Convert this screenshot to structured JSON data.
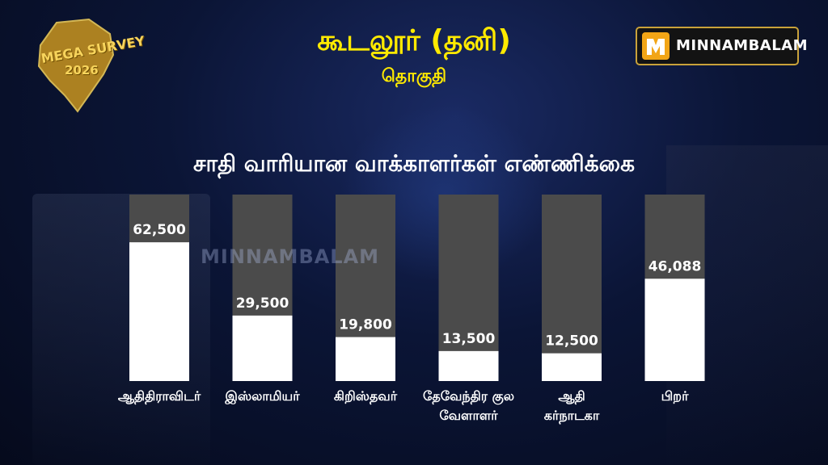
{
  "badge": {
    "line1": "MEGA SURVEY",
    "line2": "2026"
  },
  "header": {
    "title": "கூடலூர் (தனி)",
    "subtitle": "தொகுதி"
  },
  "logo": {
    "text": "MINNAMBALAM"
  },
  "watermark": "MINNAMBALAM",
  "colors": {
    "title": "#ffea00",
    "bar_fill": "#ffffff",
    "bar_track": "#4b4b4b",
    "label": "#ffffff"
  },
  "chart_data": {
    "type": "bar",
    "title": "சாதி வாரியான வாக்காளர்கள்  எண்ணிக்கை",
    "categories": [
      "ஆதிதிராவிடர்",
      "இஸ்லாமியர்",
      "கிறிஸ்தவர்",
      "தேவேந்திர குல வேளாளர்",
      "ஆதி கர்நாடகா",
      "பிறர்"
    ],
    "category_lines": [
      [
        "ஆதிதிராவிடர்"
      ],
      [
        "இஸ்லாமியர்"
      ],
      [
        "கிறிஸ்தவர்"
      ],
      [
        "தேவேந்திர குல",
        "வேளாளர்"
      ],
      [
        "ஆதி",
        "கர்நாடகா"
      ],
      [
        "பிறர்"
      ]
    ],
    "values": [
      62500,
      29500,
      19800,
      13500,
      12500,
      46088
    ],
    "value_labels": [
      "62,500",
      "29,500",
      "19,800",
      "13,500",
      "12,500",
      "46,088"
    ],
    "ylim": [
      0,
      84000
    ],
    "xlabel": "",
    "ylabel": "",
    "grid": false
  }
}
